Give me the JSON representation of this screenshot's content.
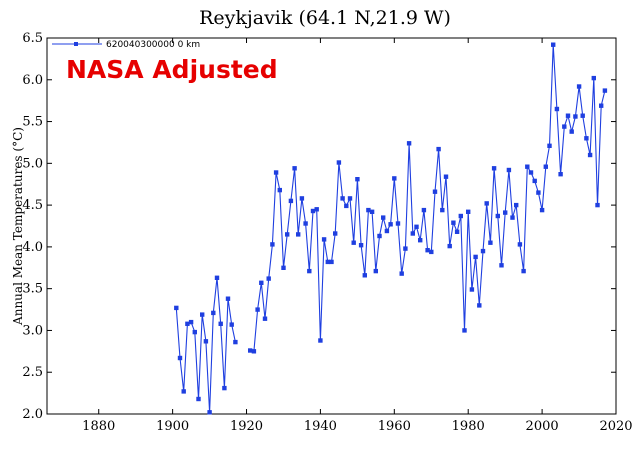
{
  "chart_data": {
    "type": "line",
    "title": "Reykjavik (64.1 N,21.9 W)",
    "ylabel": "Annual Mean Temperatures (°C)",
    "xlabel": "",
    "xlim": [
      1866,
      2020
    ],
    "ylim": [
      2.0,
      6.5
    ],
    "xticks": [
      1880,
      1900,
      1920,
      1940,
      1960,
      1980,
      2000,
      2020
    ],
    "yticks": [
      "2.0",
      "2.5",
      "3.0",
      "3.5",
      "4.0",
      "4.5",
      "5.0",
      "5.5",
      "6.0",
      "6.5"
    ],
    "grid": false,
    "legend_position": "top-left",
    "annotation": "NASA Adjusted",
    "series": [
      {
        "name": "620040300000 0 km",
        "color": "#1f3fe0",
        "x": [
          1901,
          1902,
          1903,
          1904,
          1905,
          1906,
          1907,
          1908,
          1909,
          1910,
          1911,
          1912,
          1913,
          1914,
          1915,
          1916,
          1917,
          1921,
          1922,
          1923,
          1924,
          1925,
          1926,
          1927,
          1928,
          1929,
          1930,
          1931,
          1932,
          1933,
          1934,
          1935,
          1936,
          1937,
          1938,
          1939,
          1940,
          1941,
          1942,
          1943,
          1944,
          1945,
          1946,
          1947,
          1948,
          1949,
          1950,
          1951,
          1952,
          1953,
          1954,
          1955,
          1956,
          1957,
          1958,
          1959,
          1960,
          1961,
          1962,
          1963,
          1964,
          1965,
          1966,
          1967,
          1968,
          1969,
          1970,
          1971,
          1972,
          1973,
          1974,
          1975,
          1976,
          1977,
          1978,
          1979,
          1980,
          1981,
          1982,
          1983,
          1984,
          1985,
          1986,
          1987,
          1988,
          1989,
          1990,
          1991,
          1992,
          1993,
          1994,
          1995,
          1996,
          1997,
          1998,
          1999,
          2000,
          2001,
          2002,
          2003,
          2004,
          2005,
          2006,
          2007,
          2008,
          2009,
          2010,
          2011,
          2012,
          2013,
          2014,
          2015,
          2016,
          2017
        ],
        "y": [
          3.27,
          2.67,
          2.27,
          3.08,
          3.1,
          2.98,
          2.18,
          3.19,
          2.87,
          2.02,
          3.21,
          3.63,
          3.08,
          2.31,
          3.38,
          3.07,
          2.86,
          2.76,
          2.75,
          3.25,
          3.57,
          3.14,
          3.62,
          4.03,
          4.89,
          4.68,
          3.75,
          4.15,
          4.55,
          4.94,
          4.15,
          4.58,
          4.28,
          3.71,
          4.43,
          4.45,
          2.88,
          4.09,
          3.82,
          3.82,
          4.16,
          5.01,
          4.58,
          4.49,
          4.58,
          4.05,
          4.81,
          4.02,
          3.66,
          4.44,
          4.42,
          3.71,
          4.13,
          4.35,
          4.19,
          4.27,
          4.82,
          4.28,
          3.68,
          3.98,
          5.24,
          4.16,
          4.24,
          4.08,
          4.44,
          3.96,
          3.94,
          4.66,
          5.17,
          4.44,
          4.84,
          4.01,
          4.29,
          4.18,
          4.37,
          3.0,
          4.42,
          3.49,
          3.88,
          3.3,
          3.95,
          4.52,
          4.05,
          4.94,
          4.37,
          3.78,
          4.41,
          4.92,
          4.35,
          4.5,
          4.03,
          3.71,
          4.96,
          4.89,
          4.79,
          4.65,
          4.44,
          4.96,
          5.21,
          6.42,
          5.65,
          4.87,
          5.44,
          5.57,
          5.38,
          5.56,
          5.92,
          5.57,
          5.3,
          5.1,
          6.02,
          4.5,
          5.69,
          5.87
        ]
      }
    ]
  }
}
